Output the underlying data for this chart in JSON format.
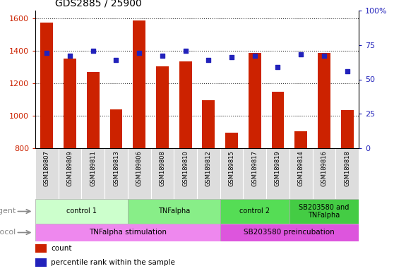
{
  "title": "GDS2885 / 25900",
  "samples": [
    "GSM189807",
    "GSM189809",
    "GSM189811",
    "GSM189813",
    "GSM189806",
    "GSM189808",
    "GSM189810",
    "GSM189812",
    "GSM189815",
    "GSM189817",
    "GSM189819",
    "GSM189814",
    "GSM189816",
    "GSM189818"
  ],
  "counts": [
    1575,
    1355,
    1270,
    1040,
    1590,
    1305,
    1335,
    1095,
    895,
    1390,
    1150,
    905,
    1390,
    1035
  ],
  "percentile_ranks": [
    69,
    67,
    71,
    64,
    69,
    67,
    71,
    64,
    66,
    67,
    59,
    68,
    67,
    56
  ],
  "ylim_left": [
    800,
    1650
  ],
  "ylim_right": [
    0,
    100
  ],
  "yticks_left": [
    800,
    1000,
    1200,
    1400,
    1600
  ],
  "yticks_right": [
    0,
    25,
    50,
    75,
    100
  ],
  "ytick_labels_right": [
    "0",
    "25",
    "50",
    "75",
    "100%"
  ],
  "bar_color": "#cc2200",
  "dot_color": "#2222bb",
  "agent_groups": [
    {
      "label": "control 1",
      "start": 0,
      "end": 4,
      "color": "#ccffcc"
    },
    {
      "label": "TNFalpha",
      "start": 4,
      "end": 8,
      "color": "#88ee88"
    },
    {
      "label": "control 2",
      "start": 8,
      "end": 11,
      "color": "#55dd55"
    },
    {
      "label": "SB203580 and\nTNFalpha",
      "start": 11,
      "end": 14,
      "color": "#44cc44"
    }
  ],
  "protocol_groups": [
    {
      "label": "TNFalpha stimulation",
      "start": 0,
      "end": 8,
      "color": "#ee88ee"
    },
    {
      "label": "SB203580 preincubation",
      "start": 8,
      "end": 14,
      "color": "#dd55dd"
    }
  ],
  "legend_count_label": "count",
  "legend_pct_label": "percentile rank within the sample",
  "bar_color_hex": "#cc2200",
  "dot_color_hex": "#2222bb",
  "bar_width": 0.55,
  "bg_color": "#ffffff",
  "xtick_bg": "#dddddd",
  "grid_color": "#333333"
}
